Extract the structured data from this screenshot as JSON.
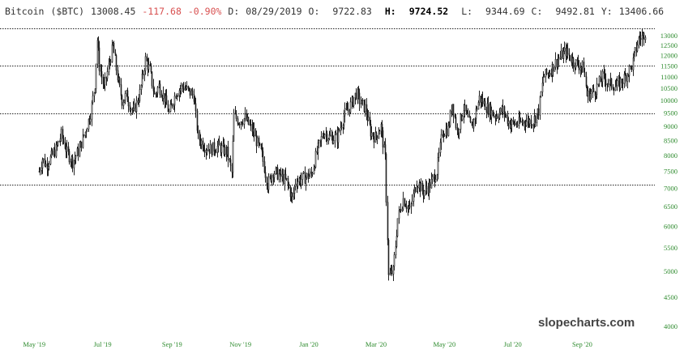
{
  "header": {
    "name": "Bitcoin",
    "symbol": "($BTC)",
    "last": "13008.45",
    "change": "-117.68",
    "change_pct": "-0.90%",
    "d_label": "D:",
    "date": "08/29/2019",
    "o_label": "O:",
    "open": "9722.83",
    "h_label": "H:",
    "high": "9724.52",
    "l_label": "L:",
    "low": "9344.69",
    "c_label": "C:",
    "close": "9492.81",
    "y_label": "Y:",
    "y_value": "13406.66"
  },
  "watermark": "slopecharts.com",
  "colors": {
    "candle": "#222222",
    "tick_label": "#2e8b2e",
    "negative": "#d85050",
    "line": "#333333"
  },
  "chart_data": {
    "type": "candlestick",
    "title": "",
    "xlabel": "",
    "ylabel": "",
    "y_scale": "log",
    "ylim": [
      3900,
      14200
    ],
    "xlim": [
      "2019-04-25",
      "2020-10-30"
    ],
    "grid": false,
    "yticks": [
      13000,
      12500,
      12000,
      11500,
      11000,
      10500,
      10000,
      9500,
      9000,
      8500,
      8000,
      7500,
      7000,
      6500,
      6000,
      5500,
      5000,
      4500,
      4000
    ],
    "xticks": [
      {
        "date": "2019-05-01",
        "label": "May '19"
      },
      {
        "date": "2019-07-01",
        "label": "Jul '19"
      },
      {
        "date": "2019-09-01",
        "label": "Sep '19"
      },
      {
        "date": "2019-11-01",
        "label": "Nov '19"
      },
      {
        "date": "2020-01-01",
        "label": "Jan '20"
      },
      {
        "date": "2020-03-01",
        "label": "Mar '20"
      },
      {
        "date": "2020-05-01",
        "label": "May '20"
      },
      {
        "date": "2020-07-01",
        "label": "Jul '20"
      },
      {
        "date": "2020-09-01",
        "label": "Sep '20"
      }
    ],
    "horizontal_lines": [
      13400,
      11500,
      9500,
      7100
    ],
    "close_path": [
      [
        "2019-05-05",
        7500
      ],
      [
        "2019-05-08",
        7900
      ],
      [
        "2019-05-11",
        7700
      ],
      [
        "2019-05-15",
        7900
      ],
      [
        "2019-05-20",
        8200
      ],
      [
        "2019-05-25",
        8700
      ],
      [
        "2019-05-30",
        8100
      ],
      [
        "2019-06-04",
        7800
      ],
      [
        "2019-06-10",
        8200
      ],
      [
        "2019-06-15",
        8800
      ],
      [
        "2019-06-20",
        9500
      ],
      [
        "2019-06-24",
        10700
      ],
      [
        "2019-06-26",
        12800
      ],
      [
        "2019-06-28",
        11500
      ],
      [
        "2019-07-02",
        10500
      ],
      [
        "2019-07-05",
        11200
      ],
      [
        "2019-07-10",
        12500
      ],
      [
        "2019-07-14",
        11000
      ],
      [
        "2019-07-18",
        10000
      ],
      [
        "2019-07-22",
        10200
      ],
      [
        "2019-07-28",
        9500
      ],
      [
        "2019-08-03",
        10300
      ],
      [
        "2019-08-08",
        11800
      ],
      [
        "2019-08-12",
        11300
      ],
      [
        "2019-08-16",
        10200
      ],
      [
        "2019-08-20",
        10600
      ],
      [
        "2019-08-25",
        10100
      ],
      [
        "2019-08-29",
        9500
      ],
      [
        "2019-09-04",
        10300
      ],
      [
        "2019-09-10",
        10600
      ],
      [
        "2019-09-15",
        10400
      ],
      [
        "2019-09-20",
        10200
      ],
      [
        "2019-09-24",
        8600
      ],
      [
        "2019-09-30",
        8300
      ],
      [
        "2019-10-05",
        8200
      ],
      [
        "2019-10-12",
        8300
      ],
      [
        "2019-10-20",
        8100
      ],
      [
        "2019-10-24",
        7450
      ],
      [
        "2019-10-26",
        9400
      ],
      [
        "2019-10-30",
        9200
      ],
      [
        "2019-11-05",
        9300
      ],
      [
        "2019-11-12",
        8800
      ],
      [
        "2019-11-20",
        8000
      ],
      [
        "2019-11-25",
        7100
      ],
      [
        "2019-11-30",
        7500
      ],
      [
        "2019-12-05",
        7400
      ],
      [
        "2019-12-12",
        7200
      ],
      [
        "2019-12-17",
        6700
      ],
      [
        "2019-12-20",
        7200
      ],
      [
        "2019-12-27",
        7300
      ],
      [
        "2020-01-03",
        7400
      ],
      [
        "2020-01-08",
        8100
      ],
      [
        "2020-01-14",
        8800
      ],
      [
        "2020-01-20",
        8600
      ],
      [
        "2020-01-26",
        8600
      ],
      [
        "2020-02-01",
        9400
      ],
      [
        "2020-02-07",
        9800
      ],
      [
        "2020-02-12",
        10300
      ],
      [
        "2020-02-16",
        9900
      ],
      [
        "2020-02-20",
        9700
      ],
      [
        "2020-02-25",
        8800
      ],
      [
        "2020-02-29",
        8600
      ],
      [
        "2020-03-05",
        9000
      ],
      [
        "2020-03-09",
        7900
      ],
      [
        "2020-03-12",
        4900
      ],
      [
        "2020-03-16",
        5000
      ],
      [
        "2020-03-20",
        6200
      ],
      [
        "2020-03-25",
        6700
      ],
      [
        "2020-03-31",
        6400
      ],
      [
        "2020-04-06",
        7200
      ],
      [
        "2020-04-12",
        6900
      ],
      [
        "2020-04-18",
        7100
      ],
      [
        "2020-04-24",
        7500
      ],
      [
        "2020-04-29",
        8800
      ],
      [
        "2020-05-04",
        8900
      ],
      [
        "2020-05-08",
        9900
      ],
      [
        "2020-05-12",
        8800
      ],
      [
        "2020-05-18",
        9700
      ],
      [
        "2020-05-25",
        8900
      ],
      [
        "2020-06-01",
        10100
      ],
      [
        "2020-06-08",
        9700
      ],
      [
        "2020-06-15",
        9400
      ],
      [
        "2020-06-22",
        9600
      ],
      [
        "2020-06-28",
        9100
      ],
      [
        "2020-07-05",
        9100
      ],
      [
        "2020-07-12",
        9200
      ],
      [
        "2020-07-19",
        9200
      ],
      [
        "2020-07-24",
        9600
      ],
      [
        "2020-07-28",
        11000
      ],
      [
        "2020-08-02",
        11200
      ],
      [
        "2020-08-10",
        11800
      ],
      [
        "2020-08-17",
        12200
      ],
      [
        "2020-08-24",
        11700
      ],
      [
        "2020-09-02",
        11400
      ],
      [
        "2020-09-05",
        10200
      ],
      [
        "2020-09-12",
        10400
      ],
      [
        "2020-09-19",
        11000
      ],
      [
        "2020-09-25",
        10700
      ],
      [
        "2020-10-02",
        10600
      ],
      [
        "2020-10-09",
        11000
      ],
      [
        "2020-10-15",
        11500
      ],
      [
        "2020-10-21",
        12800
      ],
      [
        "2020-10-25",
        13000
      ],
      [
        "2020-10-28",
        13300
      ]
    ]
  }
}
